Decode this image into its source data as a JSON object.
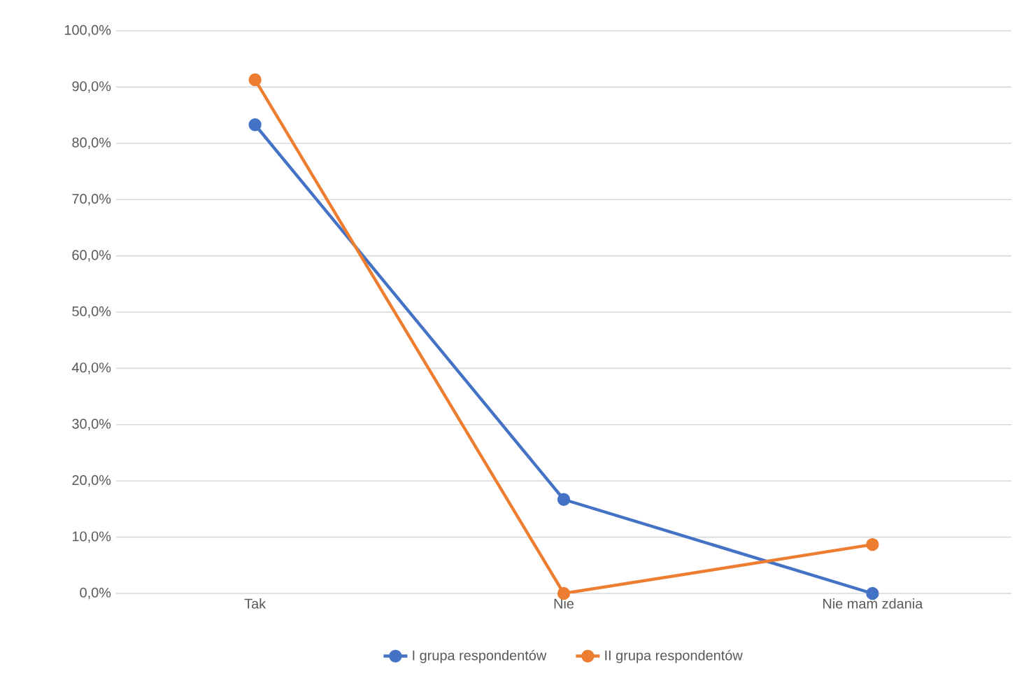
{
  "chart_data": {
    "type": "line",
    "categories": [
      "Tak",
      "Nie",
      "Nie mam zdania"
    ],
    "series": [
      {
        "name": "I grupa respondentów",
        "color": "#4472c4",
        "values": [
          83.3,
          16.7,
          0
        ]
      },
      {
        "name": "II grupa respondentów",
        "color": "#ed7d31",
        "values": [
          91.3,
          0,
          8.7
        ]
      }
    ],
    "ylim": [
      0,
      100
    ],
    "yticks": [
      {
        "value": 0,
        "label": "0,0%"
      },
      {
        "value": 10,
        "label": "10,0%"
      },
      {
        "value": 20,
        "label": "20,0%"
      },
      {
        "value": 30,
        "label": "30,0%"
      },
      {
        "value": 40,
        "label": "40,0%"
      },
      {
        "value": 50,
        "label": "50,0%"
      },
      {
        "value": 60,
        "label": "60,0%"
      },
      {
        "value": 70,
        "label": "70,0%"
      },
      {
        "value": 80,
        "label": "80,0%"
      },
      {
        "value": 90,
        "label": "90,0%"
      },
      {
        "value": 100,
        "label": "100,0%"
      }
    ],
    "grid": "y",
    "legend": "bottom",
    "marker": "circle",
    "line_style": "solid"
  }
}
